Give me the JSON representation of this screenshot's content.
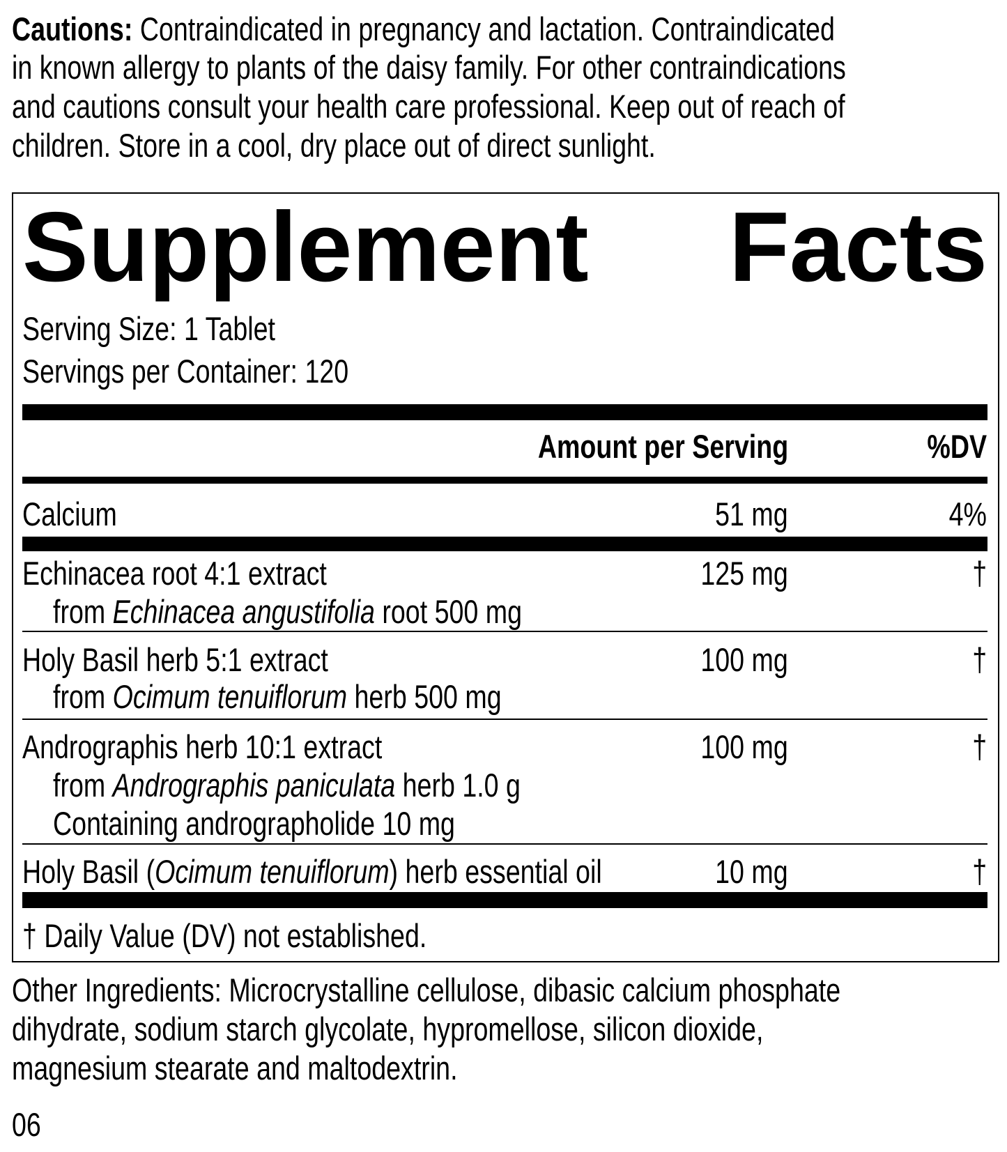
{
  "cautions": {
    "label": "Cautions:",
    "lines": [
      " Contraindicated in pregnancy and lactation. Contraindicated",
      "in known allergy to plants of the daisy family. For other contraindications",
      "and cautions consult your health care professional. Keep out of reach of",
      "children. Store in a cool, dry place out of direct sunlight."
    ]
  },
  "facts": {
    "title_word1": "Supplement",
    "title_word2": "Facts",
    "serving_size": "Serving Size: 1 Tablet",
    "servings_per_container": "Servings per Container: 120",
    "header_amount": "Amount per Serving",
    "header_dv": "%DV",
    "rows": [
      {
        "name": "Calcium",
        "amount": "51 mg",
        "dv": "4%"
      },
      {
        "name": "Echinacea root 4:1 extract",
        "sub_pre": "from ",
        "sub_it": "Echinacea angustifolia",
        "sub_post": " root 500 mg",
        "amount": "125 mg",
        "dv": "†"
      },
      {
        "name": "Holy Basil herb 5:1 extract",
        "sub_pre": "from ",
        "sub_it": "Ocimum tenuiflorum",
        "sub_post": " herb 500 mg",
        "amount": "100 mg",
        "dv": "†"
      },
      {
        "name": "Andrographis herb 10:1 extract",
        "sub_pre": "from ",
        "sub_it": "Andrographis paniculata",
        "sub_post": " herb 1.0 g",
        "sub2": "Containing andrographolide 10 mg",
        "amount": "100 mg",
        "dv": "†"
      },
      {
        "name_pre": "Holy Basil (",
        "name_it": "Ocimum tenuiflorum",
        "name_post": ") herb essential oil",
        "amount": "10 mg",
        "dv": "†"
      }
    ],
    "footnote": "† Daily Value (DV) not established."
  },
  "other_ingredients": [
    "Other Ingredients: Microcrystalline cellulose, dibasic calcium phosphate",
    "dihydrate, sodium starch glycolate, hypromellose, silicon dioxide,",
    "magnesium stearate and maltodextrin."
  ],
  "code": "06"
}
